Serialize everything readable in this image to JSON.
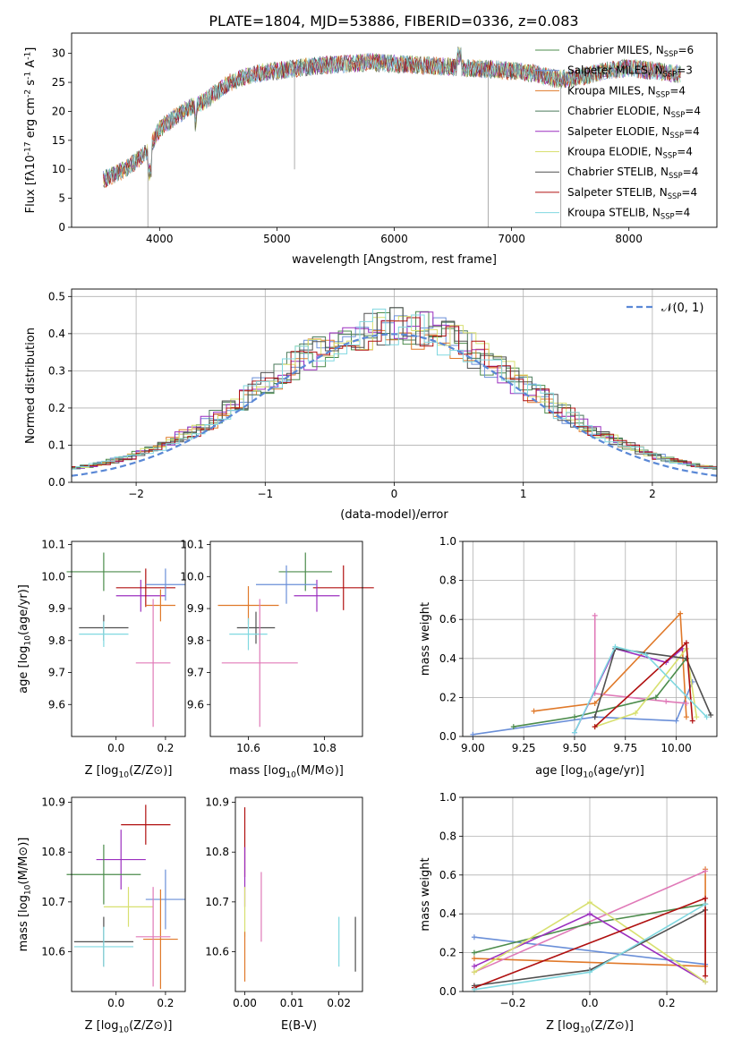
{
  "title": "PLATE=1804, MJD=53886, FIBERID=0336, z=0.083",
  "colors": {
    "c1": "#2ca02c",
    "c2": "#d62728",
    "axes": "#000000",
    "grid": "#b0b0b0"
  },
  "chart_data": [
    {
      "id": "spectrum",
      "type": "line",
      "xlabel": "wavelength [Angstrom, rest frame]",
      "ylabel": "Flux [f_λ10^-17 erg cm^-2 s^-1 A^-1]",
      "xlim": [
        3250,
        8750
      ],
      "ylim": [
        0,
        33.5
      ],
      "xticks": [
        4000,
        5000,
        6000,
        7000,
        8000
      ],
      "yticks": [
        0,
        5,
        10,
        15,
        20,
        25,
        30
      ],
      "grid": false,
      "legend_position": "top-right",
      "legend": [
        "Chabrier MILES, N_SSP=6",
        "Salpeter MILES, N_SSP=3",
        "Kroupa MILES, N_SSP=4",
        "Chabrier ELODIE, N_SSP=4",
        "Salpeter ELODIE, N_SSP=4",
        "Kroupa ELODIE, N_SSP=4",
        "Chabrier STELIB, N_SSP=4",
        "Salpeter STELIB, N_SSP=4",
        "Kroupa STELIB, N_SSP=4"
      ],
      "series_colors": [
        "#4c8c4c",
        "#6a8fd8",
        "#e0792a",
        "#4a7a5a",
        "#9b2fbf",
        "#d8e070",
        "#505050",
        "#b01010",
        "#80d8e0"
      ],
      "continuum": {
        "x": [
          3500,
          3700,
          3900,
          4000,
          4200,
          4400,
          4600,
          4800,
          5000,
          5200,
          5400,
          5600,
          5800,
          6000,
          6200,
          6400,
          6600,
          6800,
          7000,
          7200,
          7400,
          7600,
          7800,
          8000,
          8200,
          8400
        ],
        "y": [
          8,
          10,
          13,
          17,
          20,
          22,
          25,
          26.5,
          27,
          27.5,
          28,
          28.2,
          28.5,
          28.2,
          28,
          27.8,
          27.5,
          27.3,
          27,
          26.5,
          25.5,
          26,
          27,
          27.5,
          27,
          26.5
        ]
      },
      "dips": [
        {
          "series": "Kroupa ELODIE",
          "x": 3900,
          "y": 0
        },
        {
          "series": "Chabrier STELIB",
          "x": 5150,
          "y": 10
        },
        {
          "series": "Kroupa MILES",
          "x": 6800,
          "y": 0
        },
        {
          "series": "Salpeter STELIB",
          "x": 7420,
          "y": 0
        }
      ]
    },
    {
      "id": "residuals",
      "type": "bar",
      "xlabel": "(data-model)/error",
      "ylabel": "Normed distribution",
      "xlim": [
        -2.5,
        2.5
      ],
      "ylim": [
        0,
        0.52
      ],
      "xticks": [
        -2,
        -1,
        0,
        1,
        2
      ],
      "yticks": [
        0.0,
        0.1,
        0.2,
        0.3,
        0.4,
        0.5
      ],
      "grid": true,
      "legend_position": "top-right",
      "legend": [
        "N(0,1)"
      ],
      "gaussian_mean": 0,
      "gaussian_sigma": 1,
      "gaussian_color": "#5a88d6"
    },
    {
      "id": "age_vs_Z",
      "type": "scatter",
      "xlabel": "Z [log10(Z/Z_sun)]",
      "ylabel": "age  [log10(age/yr)]",
      "xlim": [
        -0.18,
        0.28
      ],
      "ylim": [
        9.5,
        10.11
      ],
      "xticks": [
        0.0,
        0.2
      ],
      "yticks": [
        9.6,
        9.7,
        9.8,
        9.9,
        10.0,
        10.1
      ],
      "points": [
        {
          "x": -0.05,
          "y": 10.015,
          "xerr": 0.15,
          "yerr": 0.06,
          "color": "#4c8c4c"
        },
        {
          "x": 0.1,
          "y": 9.94,
          "xerr": 0.1,
          "yerr": 0.05,
          "color": "#9b2fbf"
        },
        {
          "x": 0.12,
          "y": 9.965,
          "xerr": 0.12,
          "yerr": 0.06,
          "color": "#b01010"
        },
        {
          "x": 0.2,
          "y": 9.975,
          "xerr": 0.08,
          "yerr": 0.05,
          "color": "#6a8fd8"
        },
        {
          "x": 0.18,
          "y": 9.91,
          "xerr": 0.06,
          "yerr": 0.05,
          "color": "#e0792a"
        },
        {
          "x": -0.05,
          "y": 9.84,
          "xerr": 0.1,
          "yerr": 0.04,
          "color": "#505050"
        },
        {
          "x": -0.05,
          "y": 9.82,
          "xerr": 0.1,
          "yerr": 0.04,
          "color": "#80d8e0"
        },
        {
          "x": 0.15,
          "y": 9.73,
          "xerr": 0.07,
          "yerr": 0.2,
          "color": "#e07ab8"
        }
      ]
    },
    {
      "id": "age_vs_mass",
      "type": "scatter",
      "xlabel": "mass [log10(M/M_sun)]",
      "ylabel": "",
      "xlim": [
        10.5,
        10.9
      ],
      "ylim": [
        9.5,
        10.11
      ],
      "xticks": [
        10.6,
        10.8
      ],
      "yticks": [
        9.6,
        9.7,
        9.8,
        9.9,
        10.0,
        10.1
      ],
      "points": [
        {
          "x": 10.75,
          "y": 10.015,
          "xerr": 0.07,
          "yerr": 0.06,
          "color": "#4c8c4c"
        },
        {
          "x": 10.85,
          "y": 9.965,
          "xerr": 0.08,
          "yerr": 0.07,
          "color": "#b01010"
        },
        {
          "x": 10.78,
          "y": 9.94,
          "xerr": 0.06,
          "yerr": 0.05,
          "color": "#9b2fbf"
        },
        {
          "x": 10.7,
          "y": 9.975,
          "xerr": 0.08,
          "yerr": 0.06,
          "color": "#6a8fd8"
        },
        {
          "x": 10.6,
          "y": 9.91,
          "xerr": 0.08,
          "yerr": 0.06,
          "color": "#e0792a"
        },
        {
          "x": 10.62,
          "y": 9.84,
          "xerr": 0.05,
          "yerr": 0.05,
          "color": "#505050"
        },
        {
          "x": 10.6,
          "y": 9.82,
          "xerr": 0.05,
          "yerr": 0.05,
          "color": "#80d8e0"
        },
        {
          "x": 10.63,
          "y": 9.73,
          "xerr": 0.1,
          "yerr": 0.2,
          "color": "#e07ab8"
        }
      ]
    },
    {
      "id": "weight_vs_age",
      "type": "line",
      "xlabel": "age  [log10(age/yr)]",
      "ylabel": "mass weight",
      "xlim": [
        8.95,
        10.2
      ],
      "ylim": [
        0,
        1.0
      ],
      "xticks": [
        9.0,
        9.25,
        9.5,
        9.75,
        10.0
      ],
      "yticks": [
        0.0,
        0.2,
        0.4,
        0.6,
        0.8,
        1.0
      ],
      "grid": true,
      "series": [
        {
          "color": "#6a8fd8",
          "x": [
            9.0,
            9.6,
            10.0,
            10.08
          ],
          "y": [
            0.01,
            0.1,
            0.08,
            0.28
          ]
        },
        {
          "color": "#e0792a",
          "x": [
            9.3,
            9.6,
            10.02,
            10.05
          ],
          "y": [
            0.13,
            0.17,
            0.63,
            0.1
          ]
        },
        {
          "color": "#e07ab8",
          "x": [
            9.6,
            9.6,
            9.95,
            10.05
          ],
          "y": [
            0.62,
            0.22,
            0.18,
            0.17
          ]
        },
        {
          "color": "#4c8c4c",
          "x": [
            9.2,
            9.5,
            9.9,
            10.05
          ],
          "y": [
            0.05,
            0.1,
            0.2,
            0.4
          ]
        },
        {
          "color": "#9b2fbf",
          "x": [
            9.5,
            9.7,
            9.95,
            10.03
          ],
          "y": [
            0.02,
            0.45,
            0.38,
            0.45
          ]
        },
        {
          "color": "#d8e070",
          "x": [
            9.6,
            9.8,
            10.05,
            10.1
          ],
          "y": [
            0.05,
            0.12,
            0.45,
            0.1
          ]
        },
        {
          "color": "#505050",
          "x": [
            9.6,
            9.7,
            10.05,
            10.17
          ],
          "y": [
            0.1,
            0.45,
            0.4,
            0.11
          ]
        },
        {
          "color": "#b01010",
          "x": [
            9.6,
            10.05,
            10.08
          ],
          "y": [
            0.05,
            0.48,
            0.08
          ]
        },
        {
          "color": "#80d8e0",
          "x": [
            9.5,
            9.7,
            9.85,
            10.15
          ],
          "y": [
            0.02,
            0.46,
            0.42,
            0.1
          ]
        }
      ]
    },
    {
      "id": "mass_vs_Z",
      "type": "scatter",
      "xlabel": "Z [log10(Z/Z_sun)]",
      "ylabel": "mass [log10(M/M_sun)]",
      "xlim": [
        -0.18,
        0.28
      ],
      "ylim": [
        10.52,
        10.91
      ],
      "xticks": [
        0.0,
        0.2
      ],
      "yticks": [
        10.6,
        10.7,
        10.8,
        10.9
      ],
      "points": [
        {
          "x": 0.12,
          "y": 10.855,
          "xerr": 0.1,
          "yerr": 0.04,
          "color": "#b01010"
        },
        {
          "x": 0.02,
          "y": 10.785,
          "xerr": 0.1,
          "yerr": 0.06,
          "color": "#9b2fbf"
        },
        {
          "x": -0.05,
          "y": 10.755,
          "xerr": 0.15,
          "yerr": 0.06,
          "color": "#4c8c4c"
        },
        {
          "x": 0.2,
          "y": 10.705,
          "xerr": 0.08,
          "yerr": 0.06,
          "color": "#6a8fd8"
        },
        {
          "x": 0.05,
          "y": 10.69,
          "xerr": 0.1,
          "yerr": 0.04,
          "color": "#d8e070"
        },
        {
          "x": 0.18,
          "y": 10.625,
          "xerr": 0.07,
          "yerr": 0.1,
          "color": "#e0792a"
        },
        {
          "x": -0.05,
          "y": 10.62,
          "xerr": 0.12,
          "yerr": 0.05,
          "color": "#505050"
        },
        {
          "x": -0.05,
          "y": 10.61,
          "xerr": 0.12,
          "yerr": 0.04,
          "color": "#80d8e0"
        },
        {
          "x": 0.15,
          "y": 10.63,
          "xerr": 0.07,
          "yerr": 0.1,
          "color": "#e07ab8"
        }
      ]
    },
    {
      "id": "mass_vs_EBV",
      "type": "scatter",
      "xlabel": "E(B-V)",
      "ylabel": "",
      "xlim": [
        -0.002,
        0.025
      ],
      "ylim": [
        10.52,
        10.91
      ],
      "xticks": [
        0.0,
        0.01,
        0.02
      ],
      "xticklabels": [
        "0.00",
        "0.01",
        "0.02"
      ],
      "yticks": [
        10.6,
        10.7,
        10.8,
        10.9
      ],
      "points": [
        {
          "x": 0.0,
          "y": 10.82,
          "yerr": 0.07,
          "color": "#b01010"
        },
        {
          "x": 0.0,
          "y": 10.75,
          "yerr": 0.06,
          "color": "#9b2fbf"
        },
        {
          "x": 0.0,
          "y": 10.68,
          "yerr": 0.05,
          "color": "#d8e070"
        },
        {
          "x": 0.0,
          "y": 10.59,
          "yerr": 0.05,
          "color": "#e0792a"
        },
        {
          "x": 0.0035,
          "y": 10.69,
          "yerr": 0.07,
          "color": "#e07ab8"
        },
        {
          "x": 0.02,
          "y": 10.62,
          "yerr": 0.05,
          "color": "#80d8e0"
        },
        {
          "x": 0.0235,
          "y": 10.615,
          "yerr": 0.055,
          "color": "#505050"
        }
      ]
    },
    {
      "id": "weight_vs_Z",
      "type": "line",
      "xlabel": "Z [log10(Z/Z_sun)]",
      "ylabel": "mass weight",
      "xlim": [
        -0.33,
        0.33
      ],
      "ylim": [
        0,
        1.0
      ],
      "xticks": [
        -0.2,
        0.0,
        0.2
      ],
      "yticks": [
        0.0,
        0.2,
        0.4,
        0.6,
        0.8,
        1.0
      ],
      "grid": true,
      "series": [
        {
          "color": "#6a8fd8",
          "x": [
            -0.3,
            0.3,
            0.3
          ],
          "y": [
            0.28,
            0.14,
            0.45
          ]
        },
        {
          "color": "#e0792a",
          "x": [
            -0.3,
            0.3,
            0.3
          ],
          "y": [
            0.17,
            0.13,
            0.63
          ]
        },
        {
          "color": "#e07ab8",
          "x": [
            -0.3,
            0.3
          ],
          "y": [
            0.1,
            0.62
          ]
        },
        {
          "color": "#4c8c4c",
          "x": [
            -0.3,
            0.0,
            0.3
          ],
          "y": [
            0.2,
            0.35,
            0.45
          ]
        },
        {
          "color": "#9b2fbf",
          "x": [
            -0.3,
            0.0,
            0.3
          ],
          "y": [
            0.13,
            0.4,
            0.05
          ]
        },
        {
          "color": "#d8e070",
          "x": [
            -0.3,
            0.0,
            0.3
          ],
          "y": [
            0.1,
            0.46,
            0.05
          ]
        },
        {
          "color": "#505050",
          "x": [
            -0.3,
            0.0,
            0.3
          ],
          "y": [
            0.03,
            0.11,
            0.42
          ]
        },
        {
          "color": "#b01010",
          "x": [
            -0.3,
            0.3,
            0.3
          ],
          "y": [
            0.02,
            0.48,
            0.08
          ]
        },
        {
          "color": "#80d8e0",
          "x": [
            -0.3,
            0.0,
            0.3
          ],
          "y": [
            0.01,
            0.1,
            0.45
          ]
        }
      ]
    }
  ]
}
